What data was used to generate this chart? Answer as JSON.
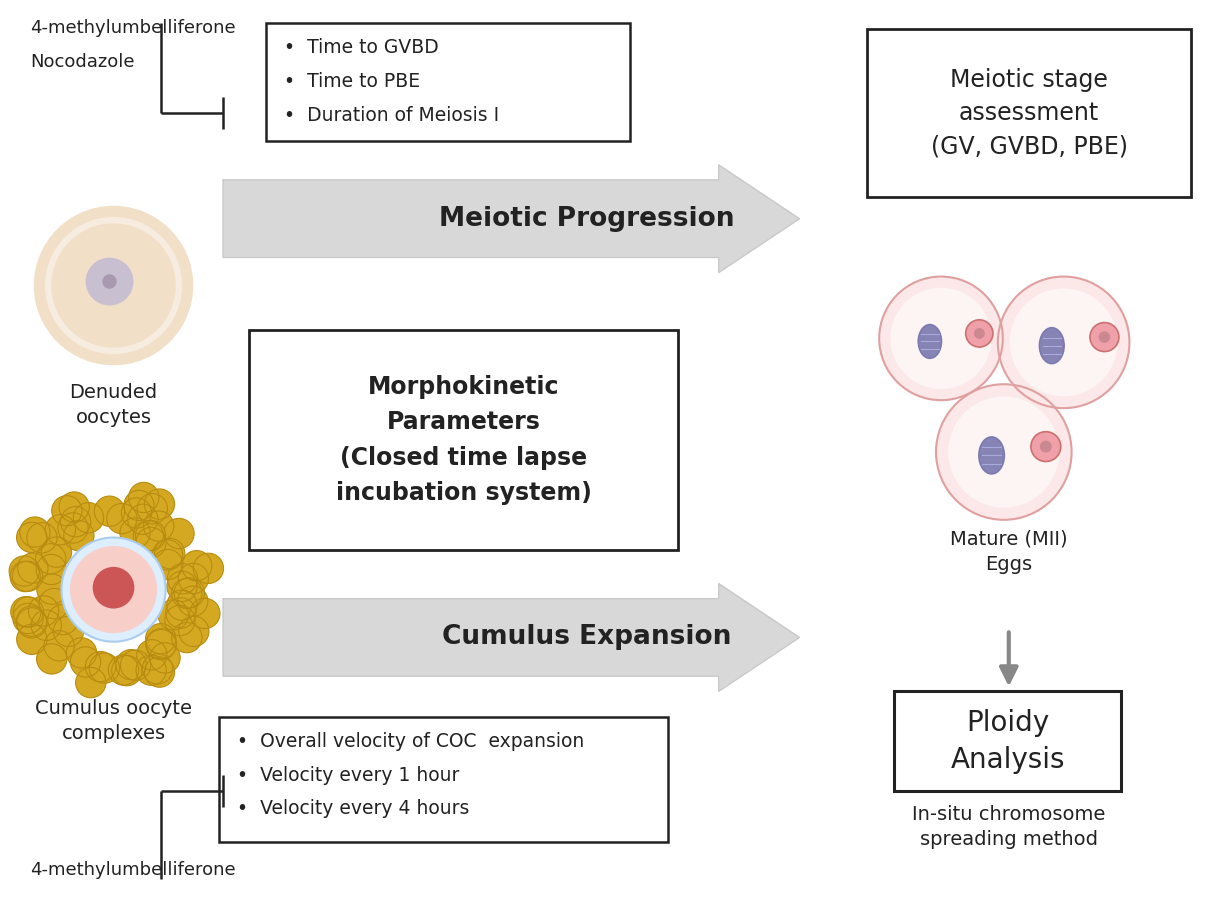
{
  "bg_color": "#ffffff",
  "arrow_color": "#d8d8d8",
  "arrow_edge_color": "#c8c8c8",
  "box_edge_color": "#222222",
  "text_color": "#222222",
  "gray_arrow_color": "#888888",
  "top_left_labels": [
    "4-methylumbelliferone",
    "Nocodazole"
  ],
  "bottom_left_label": "4-methylumbelliferone",
  "denuded_label": "Denuded\noocytes",
  "cumulus_label": "Cumulus oocyte\ncomplexes",
  "top_box_bullets": [
    "Time to GVBD",
    "Time to PBE",
    "Duration of Meiosis I"
  ],
  "bottom_box_bullets": [
    "Overall velocity of COC  expansion",
    "Velocity every 1 hour",
    "Velocity every 4 hours"
  ],
  "arrow1_label": "Meiotic Progression",
  "arrow2_label": "Morphokinetic\nParameters\n(Closed time lapse\nincubation system)",
  "arrow3_label": "Cumulus Expansion",
  "right_top_box_text": "Meiotic stage\nassessment\n(GV, GVBD, PBE)",
  "mature_label": "Mature (MII)\nEggs",
  "ploidy_box_text": "Ploidy\nAnalysis",
  "insitu_label": "In-situ chromosome\nspreading method",
  "oocyte_outer_color": "#f2dfc7",
  "oocyte_zona_color": "#f7ece0",
  "oocyte_inner_color": "#eedcca",
  "oocyte_nucleus_color": "#c8c0d0",
  "oocyte_nucleolus_color": "#a898b0",
  "cumulus_gold": "#d4a820",
  "cumulus_gold_edge": "#b88c10",
  "cumulus_blue_ring": "#ddeeff",
  "cumulus_blue_edge": "#aaccee",
  "cumulus_inner_pink": "#f8cfc8",
  "cumulus_nucleus_red": "#cc5555",
  "mii_outer_fill": "#fce8e8",
  "mii_outer_edge": "#e0a0a0",
  "mii_inner_fill": "#fdf4f4",
  "mii_spindle_color": "#7070aa",
  "mii_pb_fill": "#f0a0a8",
  "mii_pb_edge": "#cc7070"
}
